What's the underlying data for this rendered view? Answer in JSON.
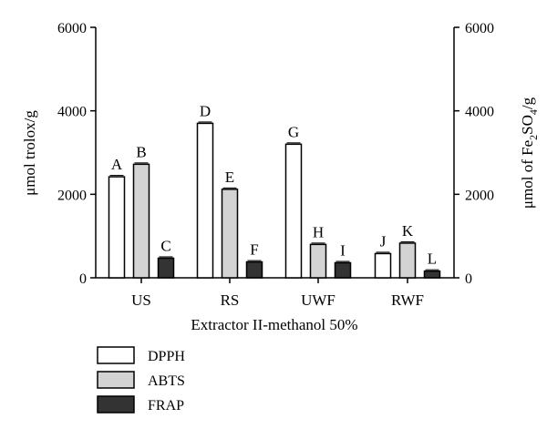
{
  "chart_data": {
    "type": "bar",
    "categories": [
      "US",
      "RS",
      "UWF",
      "RWF"
    ],
    "series": [
      {
        "name": "DPPH",
        "color": "#ffffff",
        "values": [
          2420,
          3700,
          3200,
          580
        ],
        "letters": [
          "A",
          "D",
          "G",
          "J"
        ]
      },
      {
        "name": "ABTS",
        "color": "#d3d3d3",
        "values": [
          2720,
          2120,
          800,
          830
        ],
        "letters": [
          "B",
          "E",
          "H",
          "K"
        ]
      },
      {
        "name": "FRAP",
        "color": "#333333",
        "values": [
          470,
          380,
          360,
          160
        ],
        "letters": [
          "C",
          "F",
          "I",
          "L"
        ]
      }
    ],
    "xlabel": "Extractor II-methanol 50%",
    "ylabel": "μmol trolox/g",
    "y2label": {
      "prefix": "μmol of Fe",
      "sub1": "2",
      "mid": "SO",
      "sub2": "4",
      "suffix": "/g"
    },
    "ylim": [
      0,
      6000
    ],
    "y2lim": [
      0,
      6000
    ],
    "yticks": [
      "0",
      "2000",
      "4000",
      "6000"
    ],
    "y2ticks": [
      "0",
      "2000",
      "4000",
      "6000"
    ],
    "grid": false,
    "legend_position": "bottom-left"
  }
}
